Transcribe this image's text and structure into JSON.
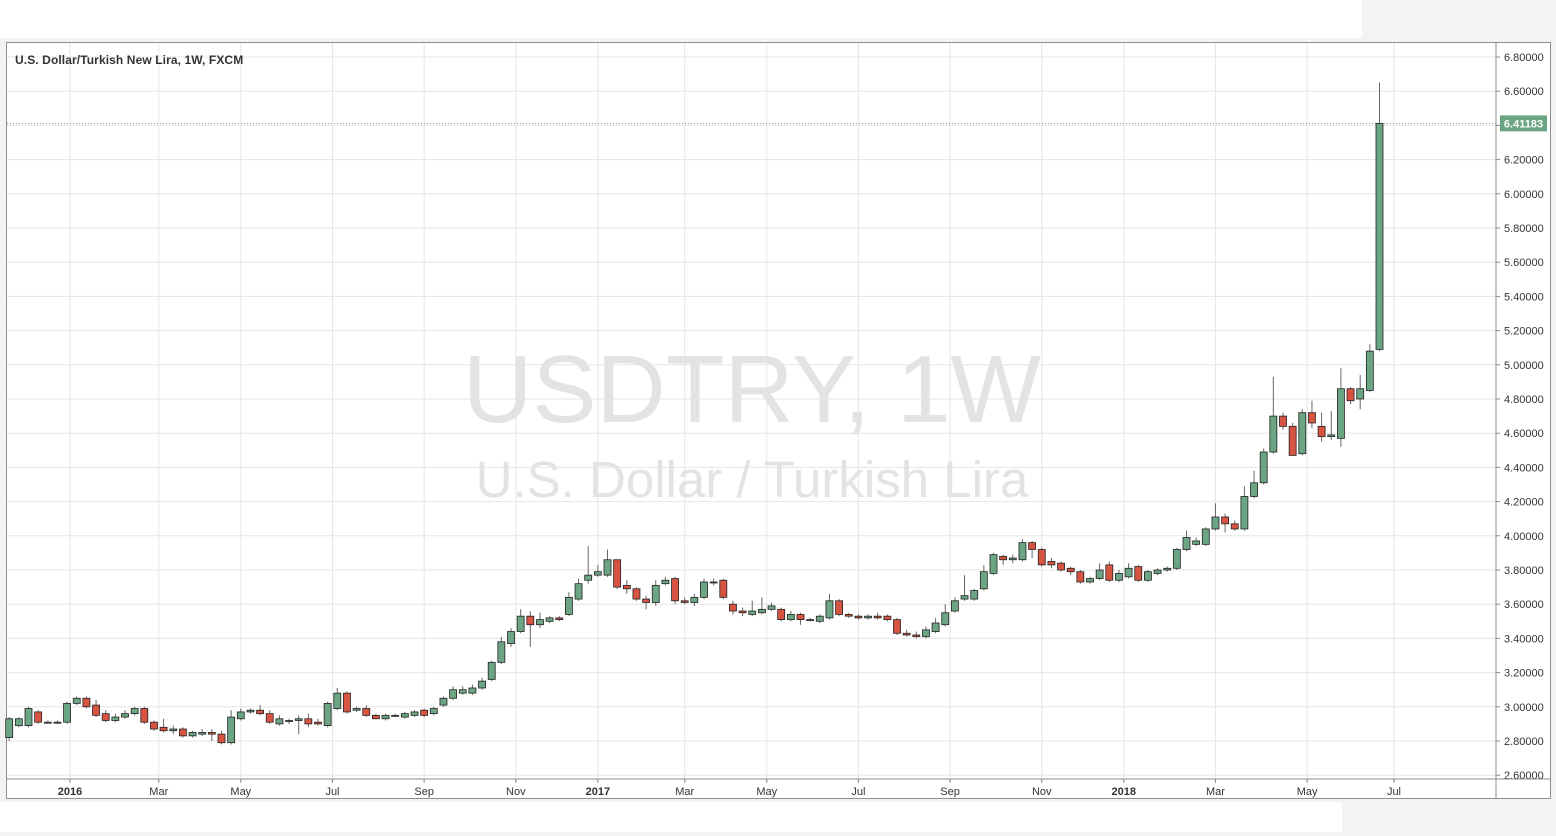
{
  "chart_data": {
    "type": "candlestick",
    "title": "U.S. Dollar/Turkish New Lira, 1W, FXCM",
    "watermark": {
      "line1": "USDTRY, 1W",
      "line2": "U.S. Dollar / Turkish Lira"
    },
    "ylim": [
      2.6,
      6.9
    ],
    "y_ticks": [
      "6.80000",
      "6.60000",
      "6.40000",
      "6.20000",
      "6.00000",
      "5.80000",
      "5.60000",
      "5.40000",
      "5.20000",
      "5.00000",
      "4.80000",
      "4.60000",
      "4.40000",
      "4.20000",
      "4.00000",
      "3.80000",
      "3.60000",
      "3.40000",
      "3.20000",
      "3.00000",
      "2.80000",
      "2.60000"
    ],
    "x_ticks": [
      {
        "label": "2016",
        "index": 6.3,
        "bold": true
      },
      {
        "label": "Mar",
        "index": 15.5,
        "bold": false
      },
      {
        "label": "May",
        "index": 24,
        "bold": false
      },
      {
        "label": "Jul",
        "index": 33.5,
        "bold": false
      },
      {
        "label": "Sep",
        "index": 43,
        "bold": false
      },
      {
        "label": "Nov",
        "index": 52.5,
        "bold": false
      },
      {
        "label": "2017",
        "index": 61,
        "bold": true
      },
      {
        "label": "Mar",
        "index": 70,
        "bold": false
      },
      {
        "label": "May",
        "index": 78.5,
        "bold": false
      },
      {
        "label": "Jul",
        "index": 88,
        "bold": false
      },
      {
        "label": "Sep",
        "index": 97.5,
        "bold": false
      },
      {
        "label": "Nov",
        "index": 107,
        "bold": false
      },
      {
        "label": "2018",
        "index": 115.5,
        "bold": true
      },
      {
        "label": "Mar",
        "index": 125,
        "bold": false
      },
      {
        "label": "May",
        "index": 134.5,
        "bold": false
      },
      {
        "label": "Jul",
        "index": 143.5,
        "bold": false
      }
    ],
    "last_price": 6.41183,
    "last_price_label": "6.41183",
    "candles": [
      {
        "o": 2.82,
        "h": 2.94,
        "l": 2.8,
        "c": 2.93
      },
      {
        "o": 2.89,
        "h": 2.94,
        "l": 2.88,
        "c": 2.93
      },
      {
        "o": 2.89,
        "h": 3.0,
        "l": 2.88,
        "c": 2.99
      },
      {
        "o": 2.97,
        "h": 2.98,
        "l": 2.9,
        "c": 2.91
      },
      {
        "o": 2.91,
        "h": 2.92,
        "l": 2.9,
        "c": 2.91
      },
      {
        "o": 2.91,
        "h": 2.92,
        "l": 2.9,
        "c": 2.91
      },
      {
        "o": 2.91,
        "h": 3.03,
        "l": 2.9,
        "c": 3.02
      },
      {
        "o": 3.02,
        "h": 3.06,
        "l": 3.01,
        "c": 3.05
      },
      {
        "o": 3.05,
        "h": 3.06,
        "l": 2.99,
        "c": 3.0
      },
      {
        "o": 3.01,
        "h": 3.04,
        "l": 2.94,
        "c": 2.95
      },
      {
        "o": 2.96,
        "h": 2.98,
        "l": 2.91,
        "c": 2.92
      },
      {
        "o": 2.92,
        "h": 2.96,
        "l": 2.91,
        "c": 2.94
      },
      {
        "o": 2.94,
        "h": 2.98,
        "l": 2.93,
        "c": 2.96
      },
      {
        "o": 2.96,
        "h": 3.0,
        "l": 2.95,
        "c": 2.99
      },
      {
        "o": 2.99,
        "h": 3.0,
        "l": 2.9,
        "c": 2.91
      },
      {
        "o": 2.91,
        "h": 2.92,
        "l": 2.86,
        "c": 2.87
      },
      {
        "o": 2.88,
        "h": 2.93,
        "l": 2.85,
        "c": 2.86
      },
      {
        "o": 2.86,
        "h": 2.89,
        "l": 2.84,
        "c": 2.87
      },
      {
        "o": 2.87,
        "h": 2.88,
        "l": 2.82,
        "c": 2.83
      },
      {
        "o": 2.83,
        "h": 2.86,
        "l": 2.82,
        "c": 2.85
      },
      {
        "o": 2.84,
        "h": 2.87,
        "l": 2.83,
        "c": 2.85
      },
      {
        "o": 2.85,
        "h": 2.87,
        "l": 2.8,
        "c": 2.84
      },
      {
        "o": 2.84,
        "h": 2.86,
        "l": 2.78,
        "c": 2.79
      },
      {
        "o": 2.79,
        "h": 2.98,
        "l": 2.78,
        "c": 2.94
      },
      {
        "o": 2.93,
        "h": 2.99,
        "l": 2.92,
        "c": 2.97
      },
      {
        "o": 2.97,
        "h": 2.99,
        "l": 2.96,
        "c": 2.98
      },
      {
        "o": 2.98,
        "h": 3.01,
        "l": 2.95,
        "c": 2.96
      },
      {
        "o": 2.96,
        "h": 2.98,
        "l": 2.9,
        "c": 2.91
      },
      {
        "o": 2.9,
        "h": 2.95,
        "l": 2.89,
        "c": 2.93
      },
      {
        "o": 2.92,
        "h": 2.93,
        "l": 2.9,
        "c": 2.92
      },
      {
        "o": 2.92,
        "h": 2.95,
        "l": 2.84,
        "c": 2.93
      },
      {
        "o": 2.93,
        "h": 2.96,
        "l": 2.88,
        "c": 2.9
      },
      {
        "o": 2.91,
        "h": 2.93,
        "l": 2.89,
        "c": 2.9
      },
      {
        "o": 2.89,
        "h": 3.03,
        "l": 2.88,
        "c": 3.02
      },
      {
        "o": 2.99,
        "h": 3.11,
        "l": 2.98,
        "c": 3.08
      },
      {
        "o": 3.08,
        "h": 3.09,
        "l": 2.96,
        "c": 2.97
      },
      {
        "o": 2.98,
        "h": 3.0,
        "l": 2.97,
        "c": 2.99
      },
      {
        "o": 2.99,
        "h": 3.01,
        "l": 2.94,
        "c": 2.95
      },
      {
        "o": 2.95,
        "h": 2.96,
        "l": 2.93,
        "c": 2.93
      },
      {
        "o": 2.93,
        "h": 2.96,
        "l": 2.92,
        "c": 2.95
      },
      {
        "o": 2.95,
        "h": 2.96,
        "l": 2.94,
        "c": 2.95
      },
      {
        "o": 2.94,
        "h": 2.97,
        "l": 2.93,
        "c": 2.96
      },
      {
        "o": 2.95,
        "h": 2.98,
        "l": 2.94,
        "c": 2.97
      },
      {
        "o": 2.98,
        "h": 2.99,
        "l": 2.94,
        "c": 2.95
      },
      {
        "o": 2.96,
        "h": 3.0,
        "l": 2.95,
        "c": 2.99
      },
      {
        "o": 3.01,
        "h": 3.06,
        "l": 3.0,
        "c": 3.05
      },
      {
        "o": 3.05,
        "h": 3.12,
        "l": 3.04,
        "c": 3.1
      },
      {
        "o": 3.08,
        "h": 3.12,
        "l": 3.07,
        "c": 3.1
      },
      {
        "o": 3.08,
        "h": 3.13,
        "l": 3.07,
        "c": 3.11
      },
      {
        "o": 3.11,
        "h": 3.17,
        "l": 3.1,
        "c": 3.15
      },
      {
        "o": 3.16,
        "h": 3.27,
        "l": 3.15,
        "c": 3.26
      },
      {
        "o": 3.26,
        "h": 3.41,
        "l": 3.25,
        "c": 3.38
      },
      {
        "o": 3.37,
        "h": 3.46,
        "l": 3.35,
        "c": 3.44
      },
      {
        "o": 3.44,
        "h": 3.57,
        "l": 3.43,
        "c": 3.53
      },
      {
        "o": 3.53,
        "h": 3.56,
        "l": 3.35,
        "c": 3.48
      },
      {
        "o": 3.48,
        "h": 3.55,
        "l": 3.46,
        "c": 3.51
      },
      {
        "o": 3.5,
        "h": 3.53,
        "l": 3.49,
        "c": 3.52
      },
      {
        "o": 3.52,
        "h": 3.53,
        "l": 3.5,
        "c": 3.51
      },
      {
        "o": 3.54,
        "h": 3.67,
        "l": 3.53,
        "c": 3.64
      },
      {
        "o": 3.63,
        "h": 3.75,
        "l": 3.62,
        "c": 3.72
      },
      {
        "o": 3.74,
        "h": 3.94,
        "l": 3.72,
        "c": 3.77
      },
      {
        "o": 3.77,
        "h": 3.83,
        "l": 3.76,
        "c": 3.79
      },
      {
        "o": 3.77,
        "h": 3.92,
        "l": 3.76,
        "c": 3.86
      },
      {
        "o": 3.86,
        "h": 3.86,
        "l": 3.69,
        "c": 3.7
      },
      {
        "o": 3.71,
        "h": 3.74,
        "l": 3.66,
        "c": 3.69
      },
      {
        "o": 3.69,
        "h": 3.7,
        "l": 3.62,
        "c": 3.63
      },
      {
        "o": 3.63,
        "h": 3.65,
        "l": 3.57,
        "c": 3.61
      },
      {
        "o": 3.61,
        "h": 3.74,
        "l": 3.59,
        "c": 3.71
      },
      {
        "o": 3.72,
        "h": 3.76,
        "l": 3.71,
        "c": 3.74
      },
      {
        "o": 3.75,
        "h": 3.76,
        "l": 3.6,
        "c": 3.62
      },
      {
        "o": 3.62,
        "h": 3.64,
        "l": 3.6,
        "c": 3.61
      },
      {
        "o": 3.61,
        "h": 3.66,
        "l": 3.59,
        "c": 3.64
      },
      {
        "o": 3.64,
        "h": 3.75,
        "l": 3.63,
        "c": 3.73
      },
      {
        "o": 3.73,
        "h": 3.75,
        "l": 3.71,
        "c": 3.73
      },
      {
        "o": 3.74,
        "h": 3.75,
        "l": 3.63,
        "c": 3.64
      },
      {
        "o": 3.6,
        "h": 3.62,
        "l": 3.54,
        "c": 3.56
      },
      {
        "o": 3.56,
        "h": 3.58,
        "l": 3.53,
        "c": 3.55
      },
      {
        "o": 3.54,
        "h": 3.62,
        "l": 3.53,
        "c": 3.56
      },
      {
        "o": 3.55,
        "h": 3.64,
        "l": 3.54,
        "c": 3.57
      },
      {
        "o": 3.57,
        "h": 3.61,
        "l": 3.56,
        "c": 3.59
      },
      {
        "o": 3.57,
        "h": 3.58,
        "l": 3.5,
        "c": 3.51
      },
      {
        "o": 3.51,
        "h": 3.56,
        "l": 3.5,
        "c": 3.54
      },
      {
        "o": 3.54,
        "h": 3.55,
        "l": 3.48,
        "c": 3.51
      },
      {
        "o": 3.51,
        "h": 3.52,
        "l": 3.5,
        "c": 3.51
      },
      {
        "o": 3.5,
        "h": 3.54,
        "l": 3.49,
        "c": 3.53
      },
      {
        "o": 3.52,
        "h": 3.66,
        "l": 3.51,
        "c": 3.62
      },
      {
        "o": 3.62,
        "h": 3.63,
        "l": 3.53,
        "c": 3.54
      },
      {
        "o": 3.54,
        "h": 3.55,
        "l": 3.52,
        "c": 3.53
      },
      {
        "o": 3.53,
        "h": 3.54,
        "l": 3.51,
        "c": 3.52
      },
      {
        "o": 3.52,
        "h": 3.54,
        "l": 3.51,
        "c": 3.53
      },
      {
        "o": 3.53,
        "h": 3.55,
        "l": 3.51,
        "c": 3.52
      },
      {
        "o": 3.53,
        "h": 3.54,
        "l": 3.5,
        "c": 3.51
      },
      {
        "o": 3.51,
        "h": 3.52,
        "l": 3.42,
        "c": 3.43
      },
      {
        "o": 3.43,
        "h": 3.45,
        "l": 3.41,
        "c": 3.42
      },
      {
        "o": 3.42,
        "h": 3.44,
        "l": 3.4,
        "c": 3.41
      },
      {
        "o": 3.41,
        "h": 3.47,
        "l": 3.4,
        "c": 3.45
      },
      {
        "o": 3.44,
        "h": 3.52,
        "l": 3.43,
        "c": 3.49
      },
      {
        "o": 3.48,
        "h": 3.6,
        "l": 3.47,
        "c": 3.55
      },
      {
        "o": 3.56,
        "h": 3.64,
        "l": 3.55,
        "c": 3.62
      },
      {
        "o": 3.63,
        "h": 3.77,
        "l": 3.62,
        "c": 3.65
      },
      {
        "o": 3.63,
        "h": 3.69,
        "l": 3.62,
        "c": 3.68
      },
      {
        "o": 3.69,
        "h": 3.83,
        "l": 3.68,
        "c": 3.79
      },
      {
        "o": 3.78,
        "h": 3.9,
        "l": 3.77,
        "c": 3.89
      },
      {
        "o": 3.88,
        "h": 3.89,
        "l": 3.83,
        "c": 3.86
      },
      {
        "o": 3.86,
        "h": 3.89,
        "l": 3.84,
        "c": 3.87
      },
      {
        "o": 3.86,
        "h": 3.98,
        "l": 3.85,
        "c": 3.96
      },
      {
        "o": 3.96,
        "h": 3.97,
        "l": 3.87,
        "c": 3.92
      },
      {
        "o": 3.92,
        "h": 3.93,
        "l": 3.82,
        "c": 3.83
      },
      {
        "o": 3.85,
        "h": 3.87,
        "l": 3.81,
        "c": 3.83
      },
      {
        "o": 3.84,
        "h": 3.85,
        "l": 3.79,
        "c": 3.8
      },
      {
        "o": 3.81,
        "h": 3.82,
        "l": 3.77,
        "c": 3.79
      },
      {
        "o": 3.79,
        "h": 3.8,
        "l": 3.72,
        "c": 3.73
      },
      {
        "o": 3.73,
        "h": 3.76,
        "l": 3.72,
        "c": 3.75
      },
      {
        "o": 3.75,
        "h": 3.84,
        "l": 3.74,
        "c": 3.8
      },
      {
        "o": 3.83,
        "h": 3.85,
        "l": 3.73,
        "c": 3.74
      },
      {
        "o": 3.74,
        "h": 3.8,
        "l": 3.73,
        "c": 3.78
      },
      {
        "o": 3.76,
        "h": 3.84,
        "l": 3.75,
        "c": 3.81
      },
      {
        "o": 3.82,
        "h": 3.83,
        "l": 3.73,
        "c": 3.74
      },
      {
        "o": 3.74,
        "h": 3.8,
        "l": 3.73,
        "c": 3.79
      },
      {
        "o": 3.78,
        "h": 3.81,
        "l": 3.77,
        "c": 3.8
      },
      {
        "o": 3.8,
        "h": 3.82,
        "l": 3.79,
        "c": 3.81
      },
      {
        "o": 3.81,
        "h": 3.93,
        "l": 3.8,
        "c": 3.92
      },
      {
        "o": 3.92,
        "h": 4.03,
        "l": 3.91,
        "c": 3.99
      },
      {
        "o": 3.95,
        "h": 3.99,
        "l": 3.94,
        "c": 3.97
      },
      {
        "o": 3.95,
        "h": 4.05,
        "l": 3.94,
        "c": 4.04
      },
      {
        "o": 4.04,
        "h": 4.19,
        "l": 4.03,
        "c": 4.11
      },
      {
        "o": 4.11,
        "h": 4.13,
        "l": 4.02,
        "c": 4.07
      },
      {
        "o": 4.07,
        "h": 4.09,
        "l": 4.03,
        "c": 4.04
      },
      {
        "o": 4.04,
        "h": 4.29,
        "l": 4.03,
        "c": 4.23
      },
      {
        "o": 4.23,
        "h": 4.38,
        "l": 4.22,
        "c": 4.31
      },
      {
        "o": 4.31,
        "h": 4.51,
        "l": 4.3,
        "c": 4.49
      },
      {
        "o": 4.49,
        "h": 4.93,
        "l": 4.48,
        "c": 4.7
      },
      {
        "o": 4.7,
        "h": 4.72,
        "l": 4.62,
        "c": 4.64
      },
      {
        "o": 4.64,
        "h": 4.66,
        "l": 4.47,
        "c": 4.47
      },
      {
        "o": 4.48,
        "h": 4.74,
        "l": 4.47,
        "c": 4.72
      },
      {
        "o": 4.72,
        "h": 4.79,
        "l": 4.63,
        "c": 4.66
      },
      {
        "o": 4.64,
        "h": 4.72,
        "l": 4.55,
        "c": 4.58
      },
      {
        "o": 4.58,
        "h": 4.73,
        "l": 4.56,
        "c": 4.59
      },
      {
        "o": 4.57,
        "h": 4.98,
        "l": 4.52,
        "c": 4.86
      },
      {
        "o": 4.86,
        "h": 4.87,
        "l": 4.77,
        "c": 4.79
      },
      {
        "o": 4.8,
        "h": 4.94,
        "l": 4.74,
        "c": 4.86
      },
      {
        "o": 4.85,
        "h": 5.12,
        "l": 4.84,
        "c": 5.08
      },
      {
        "o": 5.09,
        "h": 6.65,
        "l": 5.08,
        "c": 6.41183
      }
    ]
  },
  "colors": {
    "up_fill": "#6ba583",
    "down_fill": "#d75442",
    "wick": "#666666",
    "grid": "#e6e6e6",
    "last_price_badge": "#6ba583",
    "watermark": "#e3e3e3"
  }
}
